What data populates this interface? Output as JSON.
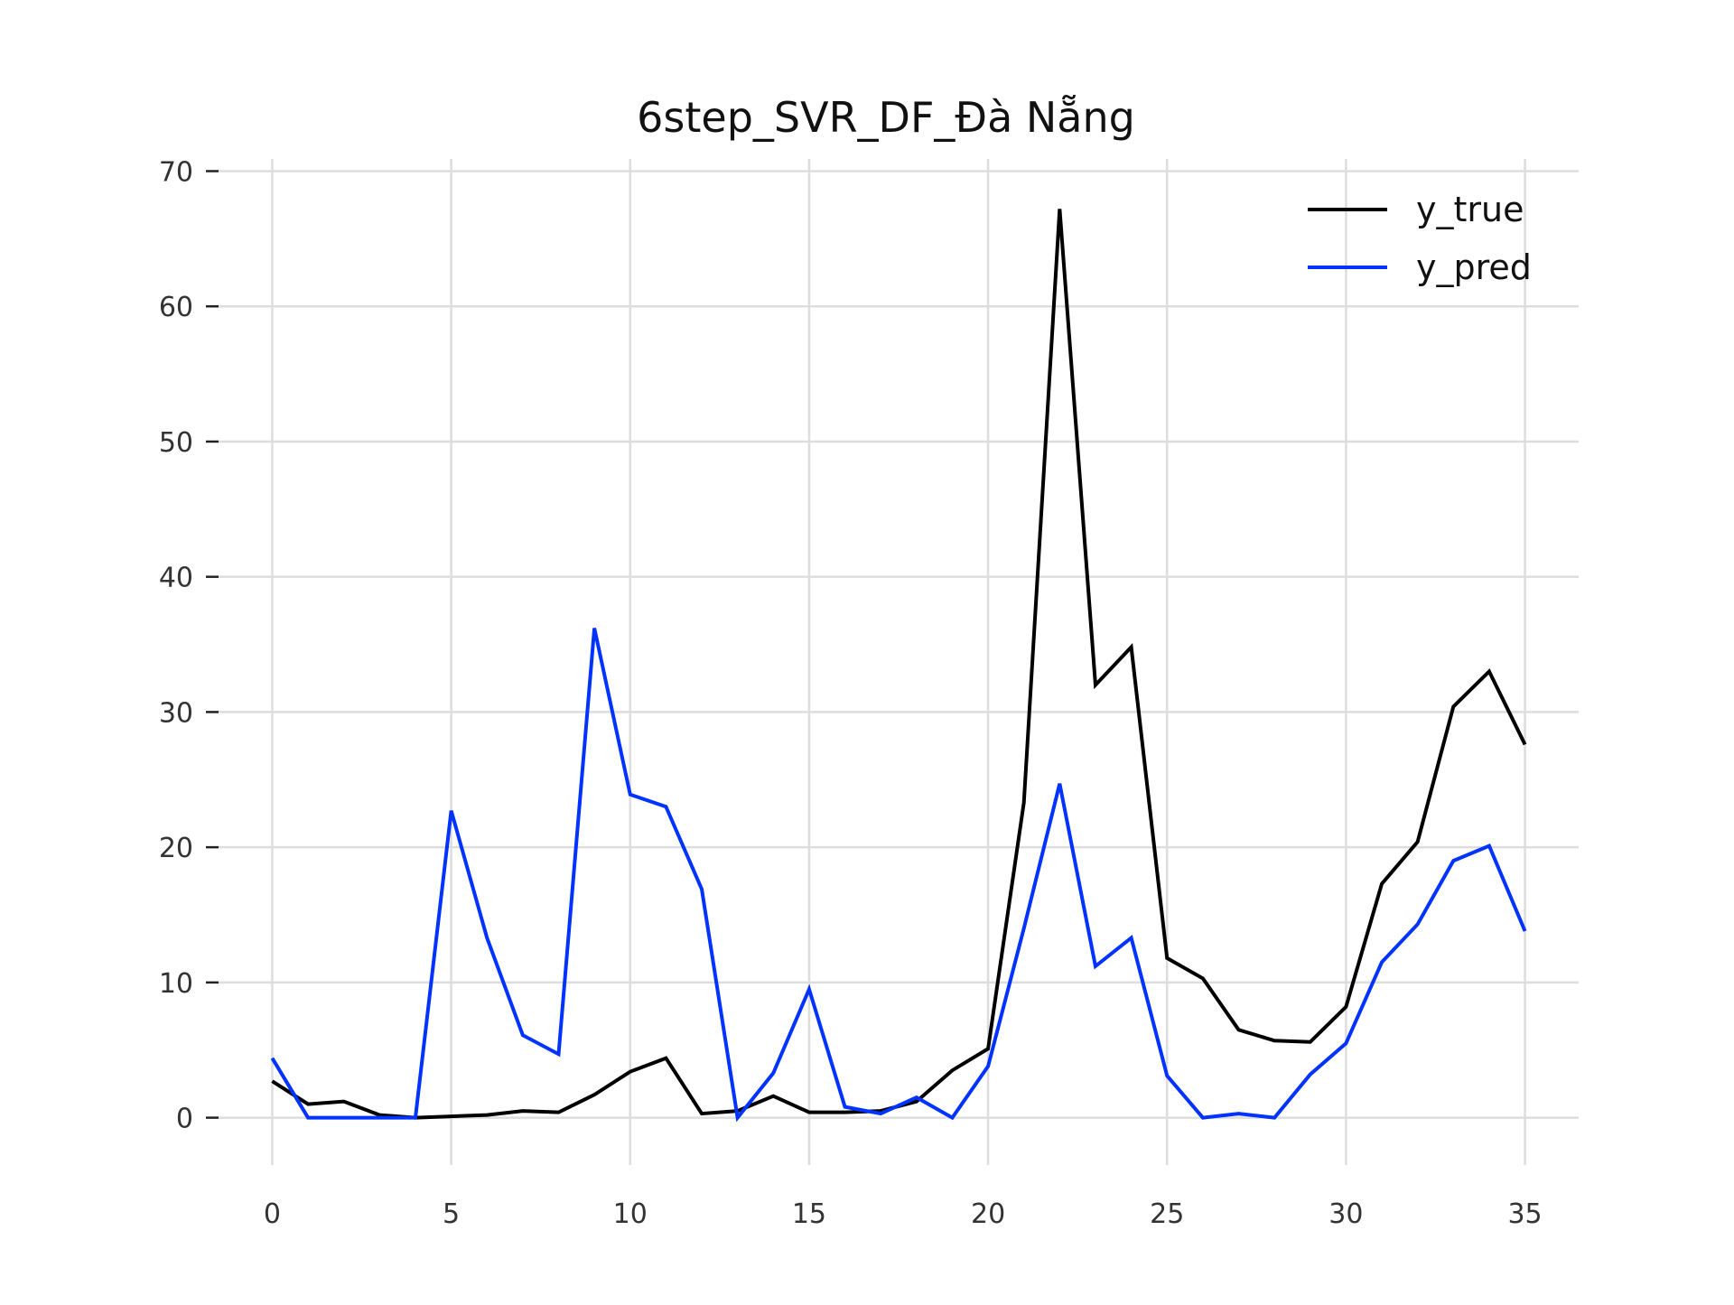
{
  "chart_data": {
    "type": "line",
    "title": "6step_SVR_DF_Đà Nẵng",
    "xlabel": "",
    "ylabel": "",
    "xlim": [
      -1.5,
      36.5
    ],
    "ylim": [
      -3.5,
      70.5
    ],
    "grid": true,
    "legend_position": "top-right",
    "x_ticks": [
      0,
      5,
      10,
      15,
      20,
      25,
      30,
      35
    ],
    "y_ticks": [
      0,
      10,
      20,
      30,
      40,
      50,
      60,
      70
    ],
    "x": [
      0,
      1,
      2,
      3,
      4,
      5,
      6,
      7,
      8,
      9,
      10,
      11,
      12,
      13,
      14,
      15,
      16,
      17,
      18,
      19,
      20,
      21,
      22,
      23,
      24,
      25,
      26,
      27,
      28,
      29,
      30,
      31,
      32,
      33,
      34,
      35
    ],
    "series": [
      {
        "name": "y_true",
        "color": "#000000",
        "values": [
          2.7,
          1.0,
          1.2,
          0.2,
          0.0,
          0.1,
          0.2,
          0.5,
          0.4,
          1.7,
          3.4,
          4.4,
          0.3,
          0.5,
          1.6,
          0.4,
          0.4,
          0.5,
          1.2,
          3.5,
          5.1,
          23.3,
          67.2,
          32.0,
          34.8,
          11.8,
          10.3,
          6.5,
          5.7,
          5.6,
          8.2,
          17.3,
          20.4,
          30.4,
          33.0,
          27.6
        ]
      },
      {
        "name": "y_pred",
        "color": "#0033ff",
        "values": [
          4.4,
          0.0,
          0.0,
          0.0,
          0.0,
          22.7,
          13.3,
          6.1,
          4.7,
          36.2,
          23.9,
          23.0,
          16.9,
          0.0,
          3.3,
          9.5,
          0.8,
          0.3,
          1.5,
          0.0,
          3.8,
          14.0,
          24.7,
          11.2,
          13.3,
          3.1,
          0.0,
          0.3,
          0.0,
          3.2,
          5.5,
          11.5,
          14.3,
          19.0,
          20.1,
          13.8
        ]
      }
    ]
  }
}
